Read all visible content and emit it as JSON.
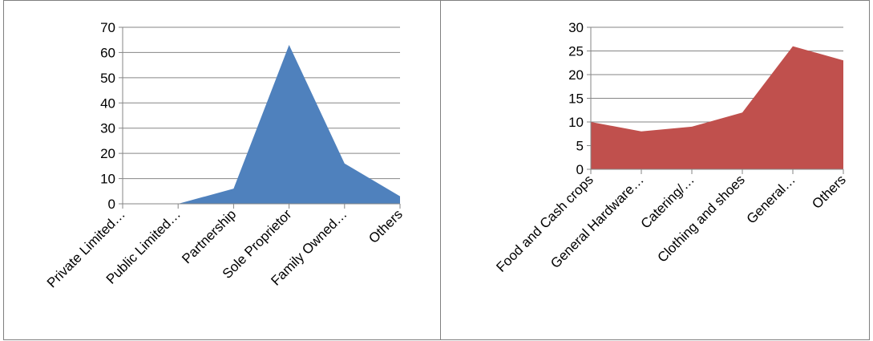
{
  "colors": {
    "left_area": "#4f81bd",
    "right_area": "#c0504d",
    "grid": "#868686"
  },
  "chart_data": [
    {
      "type": "area",
      "categories": [
        "Private Limited…",
        "Public Limited…",
        "Partnership",
        "Sole Proprietor",
        "Family Owned…",
        "Others"
      ],
      "values": [
        0,
        0,
        6,
        63,
        16,
        3
      ],
      "ylim": [
        0,
        70
      ],
      "yticks": [
        0,
        10,
        20,
        30,
        40,
        50,
        60,
        70
      ],
      "grid": true,
      "legend": "none",
      "title": "",
      "xlabel": "",
      "ylabel": ""
    },
    {
      "type": "area",
      "categories": [
        "Food and Cash crops",
        "General Hardware…",
        "Catering/…",
        "Clothing and shoes",
        "General…",
        "Others"
      ],
      "values": [
        10,
        8,
        9,
        12,
        26,
        23
      ],
      "ylim": [
        0,
        30
      ],
      "yticks": [
        0,
        5,
        10,
        15,
        20,
        25,
        30
      ],
      "grid": true,
      "legend": "none",
      "title": "",
      "xlabel": "",
      "ylabel": ""
    }
  ]
}
